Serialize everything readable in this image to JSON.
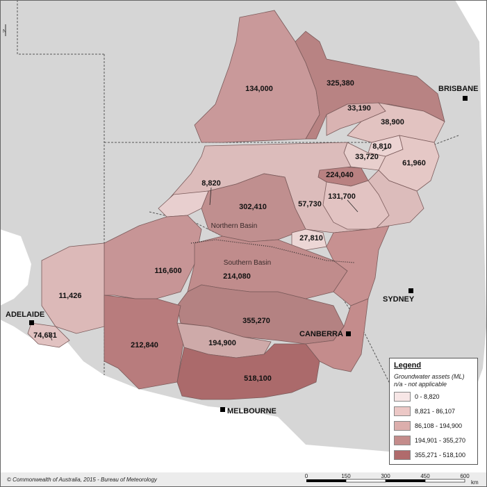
{
  "map": {
    "north_arrow": "N",
    "regions": [
      {
        "id": "r1",
        "value": "134,000"
      },
      {
        "id": "r2",
        "value": "325,380"
      },
      {
        "id": "r3",
        "value": "33,190"
      },
      {
        "id": "r4",
        "value": "38,900"
      },
      {
        "id": "r5",
        "value": "8,810"
      },
      {
        "id": "r6",
        "value": "33,720"
      },
      {
        "id": "r7",
        "value": "61,960"
      },
      {
        "id": "r8",
        "value": "224,040"
      },
      {
        "id": "r9",
        "value": "8,820"
      },
      {
        "id": "r10",
        "value": "302,410"
      },
      {
        "id": "r11",
        "value": "57,730"
      },
      {
        "id": "r12",
        "value": "131,700"
      },
      {
        "id": "r13",
        "value": "27,810"
      },
      {
        "id": "r14",
        "value": "116,600"
      },
      {
        "id": "r15",
        "value": "214,080"
      },
      {
        "id": "r16",
        "value": "11,426"
      },
      {
        "id": "r17",
        "value": "355,270"
      },
      {
        "id": "r18",
        "value": "74,681"
      },
      {
        "id": "r19",
        "value": "212,840"
      },
      {
        "id": "r20",
        "value": "194,900"
      },
      {
        "id": "r21",
        "value": "518,100"
      }
    ],
    "basins": {
      "northern": "Northern Basin",
      "southern": "Southern Basin"
    },
    "cities": {
      "brisbane": "BRISBANE",
      "sydney": "SYDNEY",
      "canberra": "CANBERRA",
      "adelaide": "ADELAIDE",
      "melbourne": "MELBOURNE"
    },
    "colors": {
      "c1": "#f7e6e6",
      "c2": "#ecc8c6",
      "c3": "#dcaeac",
      "c4": "#c48c8b",
      "c5": "#b06b6c",
      "land": "#d9d9d9",
      "sea": "#ffffff"
    }
  },
  "legend": {
    "title": "Legend",
    "subtitle": "Groundwater assets (ML)",
    "note": "n/a - not applicable",
    "classes": [
      {
        "label": "0 - 8,820",
        "color": "#f7e6e6"
      },
      {
        "label": "8,821 - 86,107",
        "color": "#ecc8c6"
      },
      {
        "label": "86,108 - 194,900",
        "color": "#dcaeac"
      },
      {
        "label": "194,901 - 355,270",
        "color": "#c48c8b"
      },
      {
        "label": "355,271 - 518,100",
        "color": "#b06b6c"
      }
    ]
  },
  "scale_bar": {
    "ticks": [
      "0",
      "150",
      "300",
      "450",
      "600"
    ],
    "unit": "km"
  },
  "footer": {
    "credit": "© Commonwealth of Australia, 2015 - Bureau of Meteorology"
  }
}
